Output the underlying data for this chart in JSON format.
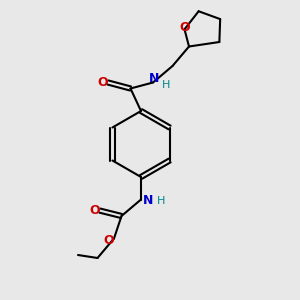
{
  "background_color": "#e8e8e8",
  "bond_color": "#000000",
  "N_color": "#0000cc",
  "O_color": "#cc0000",
  "H_color": "#008888",
  "lw": 1.5,
  "xlim": [
    0,
    10
  ],
  "ylim": [
    0,
    10
  ],
  "figsize": [
    3.0,
    3.0
  ],
  "dpi": 100
}
